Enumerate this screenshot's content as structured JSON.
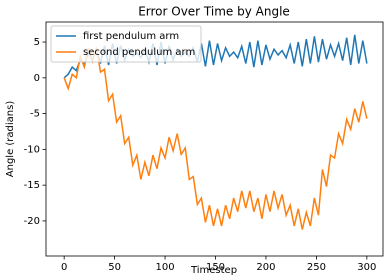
{
  "chart_data": {
    "type": "line",
    "title": "Error Over Time by Angle",
    "x_label": "Timestep",
    "y_label": "Angle (radians)",
    "x": [
      0,
      4,
      8,
      12,
      16,
      20,
      24,
      28,
      32,
      36,
      40,
      44,
      48,
      52,
      56,
      60,
      64,
      68,
      72,
      76,
      80,
      84,
      88,
      92,
      96,
      100,
      104,
      108,
      112,
      116,
      120,
      124,
      128,
      132,
      136,
      140,
      144,
      148,
      152,
      156,
      160,
      164,
      168,
      172,
      176,
      180,
      184,
      188,
      192,
      196,
      200,
      204,
      208,
      212,
      216,
      220,
      224,
      228,
      232,
      236,
      240,
      244,
      248,
      252,
      256,
      260,
      264,
      268,
      272,
      276,
      280,
      284,
      288,
      292,
      296,
      300
    ],
    "series": [
      {
        "name": "first pendulum arm",
        "color": "#1f77b4",
        "values": [
          0,
          0.5,
          1.5,
          1,
          2.5,
          2,
          3.5,
          2.5,
          4,
          2,
          4.5,
          1.8,
          4.8,
          2,
          4.5,
          2.5,
          4,
          3,
          3.5,
          2.8,
          4,
          2.2,
          4.8,
          1.8,
          5,
          2,
          4.5,
          2.5,
          4,
          3,
          3.6,
          3,
          4.2,
          2.2,
          4.8,
          1.6,
          5.2,
          1.8,
          4.8,
          2.4,
          4.2,
          3,
          3.6,
          2.8,
          4.4,
          2,
          5,
          1.5,
          5.2,
          1.8,
          4.6,
          2.6,
          4,
          3.2,
          3.8,
          2.8,
          4.6,
          2,
          5,
          1.6,
          5.4,
          2,
          5.8,
          2.2,
          5.4,
          2.6,
          4.6,
          3,
          4.8,
          2.4,
          5.6,
          1.8,
          6,
          2,
          5.2,
          2
        ]
      },
      {
        "name": "second pendulum arm",
        "color": "#ff7f0e",
        "values": [
          0,
          -1.5,
          0.5,
          0,
          3,
          1.5,
          4.2,
          2.3,
          4.2,
          0.8,
          1.2,
          -3.2,
          -2.3,
          -6.2,
          -5.3,
          -9.2,
          -8.3,
          -12.2,
          -10.8,
          -14.2,
          -11.8,
          -13.7,
          -10.8,
          -12.7,
          -9.8,
          -11.2,
          -8.3,
          -10.2,
          -7.8,
          -10.7,
          -9.8,
          -14.2,
          -13.8,
          -17.7,
          -16.8,
          -20.2,
          -17.8,
          -20.7,
          -18.3,
          -20.7,
          -17.8,
          -19.7,
          -16.8,
          -18.7,
          -15.8,
          -18.2,
          -15.8,
          -18.7,
          -16.8,
          -19.7,
          -16.3,
          -18.7,
          -15.8,
          -18.2,
          -16.3,
          -19.2,
          -17.8,
          -20.7,
          -18.3,
          -21.2,
          -18.8,
          -20.7,
          -16.8,
          -19.2,
          -12.8,
          -15.2,
          -10.8,
          -11.2,
          -7.8,
          -9.2,
          -5.8,
          -7.2,
          -4.3,
          -6.2,
          -3.3,
          -5.7
        ]
      }
    ],
    "xlim": [
      -18,
      316
    ],
    "xticks": [
      0,
      50,
      100,
      150,
      200,
      250,
      300
    ],
    "ylim": [
      -24.9,
      7.8
    ],
    "yticks": [
      -20,
      -15,
      -10,
      -5,
      0,
      5
    ],
    "legend": "upper left"
  }
}
